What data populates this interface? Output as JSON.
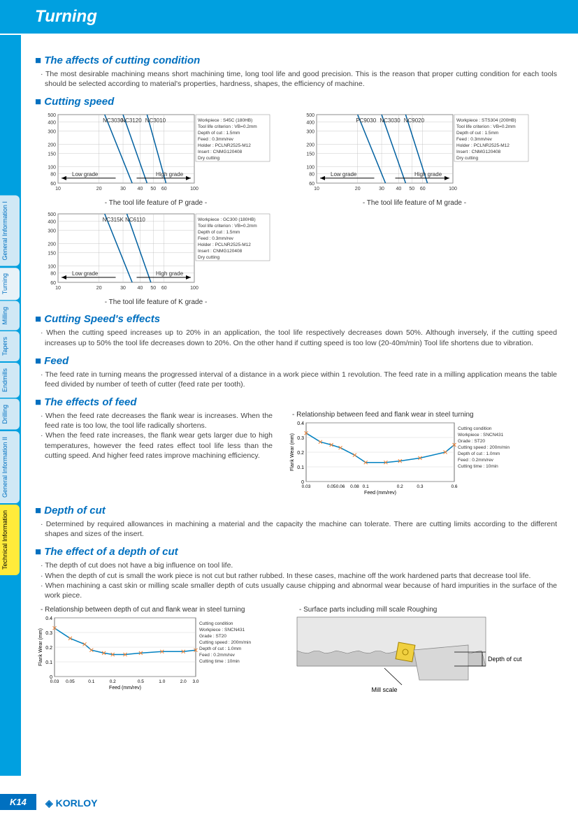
{
  "page": {
    "title": "Turning",
    "number": "K14",
    "brand": "KORLOY"
  },
  "side_tabs": [
    {
      "label": "General Information I",
      "bg": "#d0e8f5",
      "fg": "#0070c0"
    },
    {
      "label": "Turning",
      "bg": "#e8f2f8",
      "fg": "#0070c0"
    },
    {
      "label": "Milling",
      "bg": "#d0e8f5",
      "fg": "#0070c0"
    },
    {
      "label": "Tapers",
      "bg": "#d0e8f5",
      "fg": "#0070c0"
    },
    {
      "label": "Endmills",
      "bg": "#d0e8f5",
      "fg": "#0070c0"
    },
    {
      "label": "Drilling",
      "bg": "#d0e8f5",
      "fg": "#0070c0"
    },
    {
      "label": "General Information II",
      "bg": "#d0e8f5",
      "fg": "#0070c0"
    },
    {
      "label": "Technical Information",
      "bg": "#ffeb3b",
      "fg": "#000"
    }
  ],
  "sections": {
    "affects": {
      "heading": "The affects of cutting condition",
      "text": "The most desirable machining means short machining time,  long tool life and good precision. This is the reason that proper cutting condition for each tools should be selected according to material's properties, hardness, shapes, the efficiency of machine."
    },
    "cutting_speed": {
      "heading": "Cutting speed"
    },
    "cutting_speed_effects": {
      "heading": "Cutting Speed's effects",
      "text": "When the cutting speed increases up to 20% in an application, the tool life respectively decreases down 50%. Although inversely, if the cutting speed increases up to 50% the tool life decreases down to 20%. On the other hand if cutting speed is too low (20-40m/min) Tool life shortens due to vibration."
    },
    "feed": {
      "heading": "Feed",
      "text": "The feed rate in turning means the progressed interval of a distance in a work piece within 1 revolution. The feed rate in a milling application means the table feed divided by number of teeth of cutter (feed rate per tooth)."
    },
    "effects_feed": {
      "heading": "The effects of feed",
      "b1": "When the feed rate decreases the flank wear is increases. When the feed rate is too low, the tool life radically shortens.",
      "b2": "When the feed rate increases, the flank wear gets larger due to high temperatures, however the feed rates effect tool life less than the cutting speed. And higher feed rates improve machining efficiency."
    },
    "depth": {
      "heading": "Depth of cut",
      "text": "Determined by required allowances in machining a material and the capacity the machine can tolerate. There are cutting limits according to the different shapes and sizes of the insert."
    },
    "effect_depth": {
      "heading": "The effect of a depth of cut",
      "b1": "The depth of cut does not have a big influence on tool life.",
      "b2": "When the depth of cut is small the work piece is not cut but rather rubbed. In these cases, machine off the work hardened parts that decrease tool life.",
      "b3": "When machining a cast skin or milling scale smaller depth of cuts usually cause chipping and abnormal wear because of hard impurities in the surface of the work piece."
    }
  },
  "toollife_charts": {
    "y_ticks": [
      60,
      80,
      100,
      150,
      200,
      300,
      400,
      500
    ],
    "x_ticks": [
      10,
      20,
      30,
      40,
      50,
      60,
      100
    ],
    "low_label": "Low grade",
    "high_label": "High grade",
    "info_common": [
      "Tool life criterion : VB=0.2mm",
      "Depth of cut : 1.5mm",
      "Feed : 0.3mm/rev",
      "Holder : PCLNR2525-M12",
      "Insert : CNMG120408",
      "Dry cutting"
    ],
    "p": {
      "caption": "- The tool life feature of P grade  -",
      "workpiece": "Workpiece : S45C (180HB)",
      "series": [
        {
          "label": "NC3030",
          "x": [
            22,
            35
          ],
          "y": [
            500,
            60
          ]
        },
        {
          "label": "NC3120",
          "x": [
            30,
            45
          ],
          "y": [
            500,
            60
          ]
        },
        {
          "label": "NC3010",
          "x": [
            45,
            62
          ],
          "y": [
            500,
            60
          ]
        }
      ]
    },
    "m": {
      "caption": "- The tool life feature of M grade  -",
      "workpiece": "Workpiece : STS304 (200HB)",
      "series": [
        {
          "label": "PC9030",
          "x": [
            20,
            32
          ],
          "y": [
            500,
            60
          ]
        },
        {
          "label": "NC3030",
          "x": [
            30,
            45
          ],
          "y": [
            500,
            60
          ]
        },
        {
          "label": "NC9020",
          "x": [
            45,
            65
          ],
          "y": [
            500,
            60
          ]
        }
      ]
    },
    "k": {
      "caption": "- The tool life feature of K grade  -",
      "workpiece": "Workpiece : GC300 (180HB)",
      "series": [
        {
          "label": "NC315K",
          "x": [
            22,
            35
          ],
          "y": [
            500,
            60
          ]
        },
        {
          "label": "NC6110",
          "x": [
            32,
            48
          ],
          "y": [
            500,
            60
          ]
        }
      ]
    }
  },
  "flank_chart": {
    "title": "- Relationship between feed and flank wear in steel turning",
    "y_label": "Flank Wear (mm)",
    "x_label": "Feed (mm/rev)",
    "y_ticks": [
      0,
      0.1,
      0.2,
      0.3,
      0.4
    ],
    "x_ticks": [
      0.03,
      0.05,
      0.06,
      0.08,
      0.1,
      0.2,
      0.3,
      0.6
    ],
    "points": [
      [
        0.03,
        0.33
      ],
      [
        0.04,
        0.27
      ],
      [
        0.05,
        0.25
      ],
      [
        0.06,
        0.23
      ],
      [
        0.08,
        0.18
      ],
      [
        0.1,
        0.13
      ],
      [
        0.15,
        0.13
      ],
      [
        0.2,
        0.14
      ],
      [
        0.3,
        0.16
      ],
      [
        0.5,
        0.2
      ],
      [
        0.6,
        0.25
      ]
    ],
    "info": [
      "Cutting condition",
      "Workpiece : SNCN431",
      "Grade : ST20",
      "Cutting speed : 200m/min",
      "Depth of cut : 1.0mm",
      "Feed : 0.2mm/rev",
      "Cutting time : 10min"
    ]
  },
  "depth_chart": {
    "title": "- Relationship between depth of cut and flank wear in steel turning",
    "y_label": "Flank Wear (mm)",
    "x_label": "Feed (mm/rev)",
    "y_ticks": [
      0,
      0.1,
      0.2,
      0.3,
      0.4
    ],
    "x_ticks": [
      "0.03",
      "0.05",
      "0.1",
      "0.2",
      "0.5",
      "1.0",
      "2.0",
      "3.0"
    ],
    "points": [
      [
        0.03,
        0.33
      ],
      [
        0.05,
        0.26
      ],
      [
        0.08,
        0.22
      ],
      [
        0.1,
        0.18
      ],
      [
        0.15,
        0.16
      ],
      [
        0.2,
        0.15
      ],
      [
        0.3,
        0.15
      ],
      [
        0.5,
        0.16
      ],
      [
        1.0,
        0.17
      ],
      [
        2.0,
        0.17
      ],
      [
        3.0,
        0.18
      ]
    ],
    "info": [
      "Cutting condition",
      "Workpiece : SNCN431",
      "Grade : ST20",
      "Cutting speed : 200m/min",
      "Depth of cut : 1.0mm",
      "Feed : 0.2mm/rev",
      "Cutting time : 10min"
    ]
  },
  "roughing": {
    "title": "- Surface parts including mill scale Roughing",
    "depth_label": "Depth of cut",
    "mill_label": "Mill scale"
  },
  "colors": {
    "accent": "#0070c0",
    "series_line": "#0060a0",
    "grid": "#888",
    "curve": "#0080c0",
    "marker": "#f08030",
    "bg_box": "#fff"
  }
}
